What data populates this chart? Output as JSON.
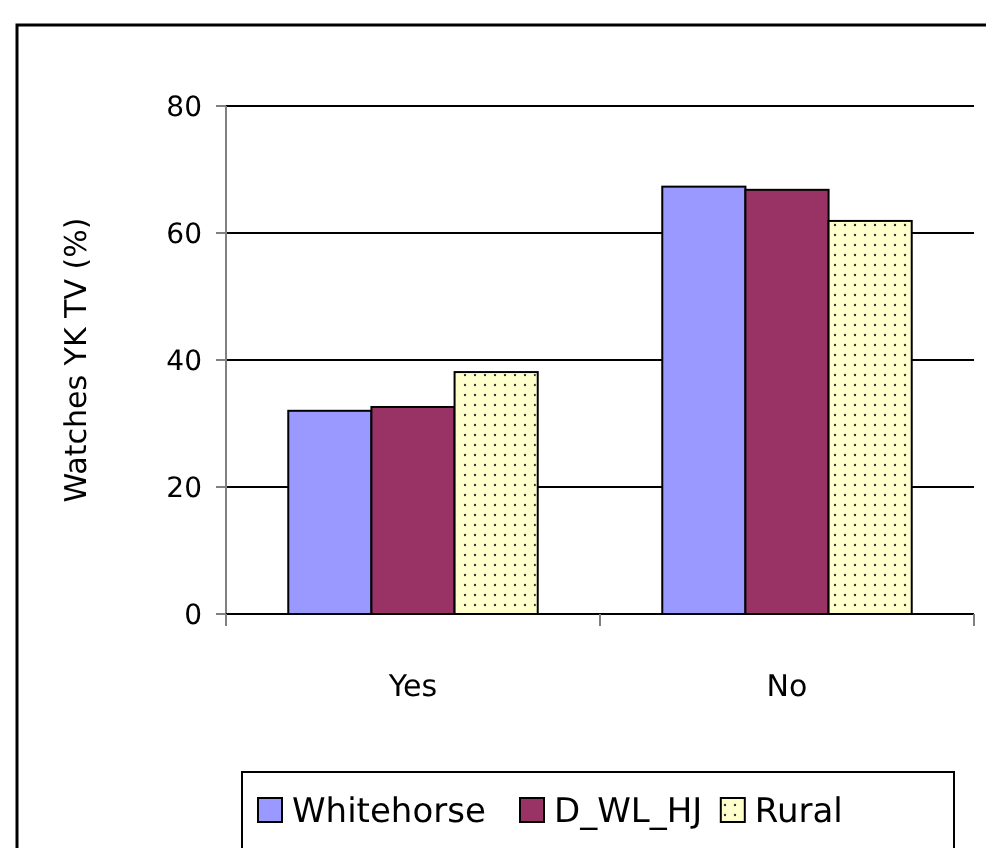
{
  "chart_data": {
    "type": "bar",
    "ylabel": "Watches YK TV (%)",
    "categories": [
      "Yes",
      "No"
    ],
    "series": [
      {
        "name": "Whitehorse",
        "color": "#9999ff",
        "values": [
          32.0,
          67.3
        ]
      },
      {
        "name": "D_WL_HJ",
        "color": "#993366",
        "values": [
          32.6,
          66.8
        ]
      },
      {
        "name": "Rural",
        "color": "#ffffcc",
        "values": [
          38.1,
          61.9
        ]
      }
    ],
    "ylim": [
      0,
      80
    ],
    "yticks": [
      0,
      20,
      40,
      60,
      80
    ],
    "grid": "y",
    "legend": "bottom"
  }
}
